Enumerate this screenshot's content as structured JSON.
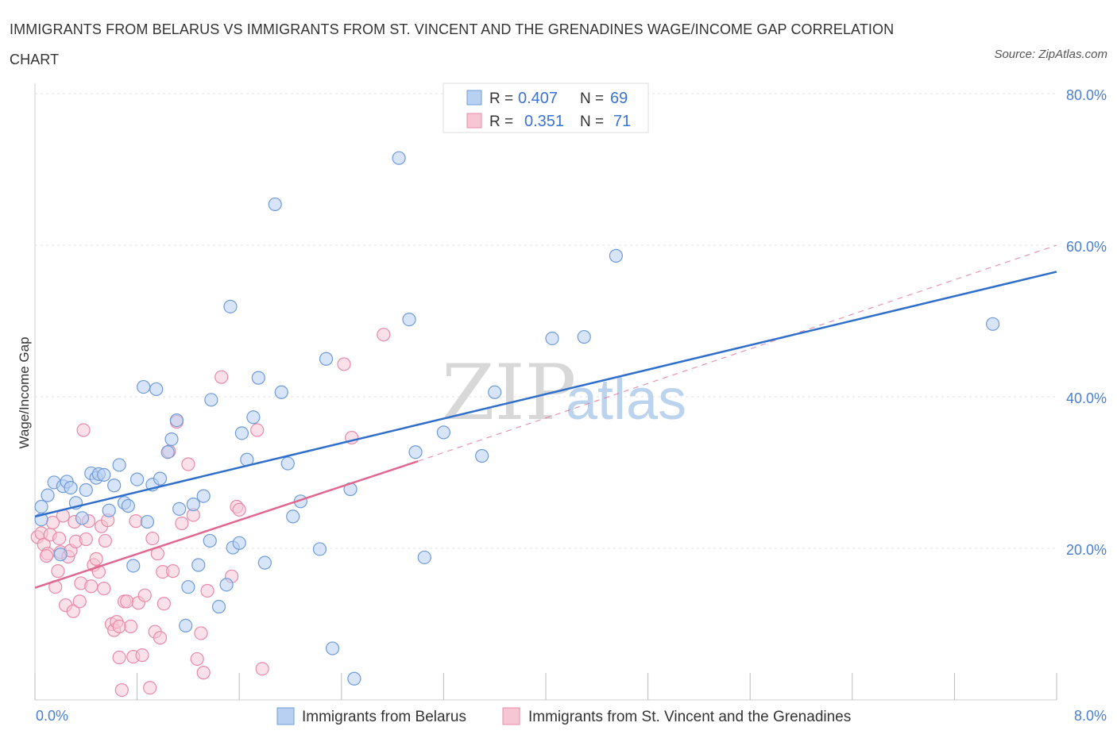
{
  "title": "IMMIGRANTS FROM BELARUS VS IMMIGRANTS FROM ST. VINCENT AND THE GRENADINES WAGE/INCOME GAP CORRELATION CHART",
  "source": "Source: ZipAtlas.com",
  "watermark": {
    "part1": "ZIP",
    "part2": "atlas"
  },
  "legend": {
    "series1": {
      "r_label": "R =",
      "r_value": "0.407",
      "n_label": "N =",
      "n_value": "69"
    },
    "series2": {
      "r_label": "R =",
      "r_value": "0.351",
      "n_label": "N =",
      "n_value": "71"
    }
  },
  "colors": {
    "belarus_fill": "#b8d0f2",
    "belarus_stroke": "#6f9bd9",
    "belarus_line": "#2f6fcb",
    "svg_fill": "#f6c6d5",
    "svg_stroke": "#e98aa8",
    "svg_line": "#e06890",
    "axis_text": "#4a7fcf",
    "grid": "#e3e3e3"
  },
  "chart_data": {
    "type": "scatter",
    "title": "IMMIGRANTS FROM BELARUS VS IMMIGRANTS FROM ST. VINCENT AND THE GRENADINES WAGE/INCOME GAP CORRELATION CHART",
    "xlabel": "",
    "ylabel": "Wage/Income Gap",
    "xlim": [
      0,
      8
    ],
    "ylim": [
      0,
      80
    ],
    "x_tick_labels": [
      {
        "value": 0,
        "label": "0.0%"
      },
      {
        "value": 8,
        "label": "8.0%"
      }
    ],
    "y_tick_labels": [
      {
        "value": 20,
        "label": "20.0%"
      },
      {
        "value": 40,
        "label": "40.0%"
      },
      {
        "value": 60,
        "label": "60.0%"
      },
      {
        "value": 80,
        "label": "80.0%"
      }
    ],
    "grid": true,
    "legend_position": "top-center",
    "series": [
      {
        "name": "Immigrants from Belarus",
        "r": 0.407,
        "n": 69,
        "trend": {
          "x": [
            0,
            8
          ],
          "y": [
            24.2,
            56.5
          ],
          "style": "solid"
        },
        "points": [
          [
            0.05,
            25.5
          ],
          [
            0.1,
            27
          ],
          [
            0.15,
            28.7
          ],
          [
            0.2,
            19.2
          ],
          [
            0.22,
            28.2
          ],
          [
            0.25,
            28.8
          ],
          [
            0.28,
            28
          ],
          [
            0.32,
            26
          ],
          [
            0.37,
            24
          ],
          [
            0.4,
            27.7
          ],
          [
            0.44,
            29.9
          ],
          [
            0.48,
            29.3
          ],
          [
            0.5,
            29.8
          ],
          [
            0.54,
            29.7
          ],
          [
            0.58,
            25
          ],
          [
            0.62,
            28.3
          ],
          [
            0.66,
            31
          ],
          [
            0.7,
            26
          ],
          [
            0.73,
            25.6
          ],
          [
            0.77,
            17.7
          ],
          [
            0.8,
            29.1
          ],
          [
            0.85,
            41.3
          ],
          [
            0.88,
            23.5
          ],
          [
            0.92,
            28.4
          ],
          [
            0.95,
            41
          ],
          [
            0.98,
            29.2
          ],
          [
            1.04,
            32.7
          ],
          [
            1.07,
            34.4
          ],
          [
            1.11,
            36.9
          ],
          [
            1.13,
            25.2
          ],
          [
            1.18,
            9.8
          ],
          [
            1.2,
            14.9
          ],
          [
            1.24,
            25.8
          ],
          [
            1.28,
            17.8
          ],
          [
            1.32,
            26.9
          ],
          [
            1.37,
            21
          ],
          [
            1.38,
            39.6
          ],
          [
            1.44,
            12.3
          ],
          [
            1.5,
            15.2
          ],
          [
            1.53,
            51.9
          ],
          [
            1.55,
            20.1
          ],
          [
            1.6,
            20.7
          ],
          [
            1.62,
            35.2
          ],
          [
            1.66,
            31.7
          ],
          [
            1.71,
            37.3
          ],
          [
            1.75,
            42.5
          ],
          [
            1.8,
            18.1
          ],
          [
            1.88,
            65.4
          ],
          [
            1.93,
            40.6
          ],
          [
            1.98,
            31.2
          ],
          [
            2.02,
            24.2
          ],
          [
            2.08,
            26.2
          ],
          [
            2.23,
            19.9
          ],
          [
            2.28,
            45
          ],
          [
            2.33,
            6.8
          ],
          [
            2.47,
            27.8
          ],
          [
            2.5,
            2.8
          ],
          [
            2.85,
            71.5
          ],
          [
            2.93,
            50.2
          ],
          [
            2.98,
            32.7
          ],
          [
            3.05,
            18.8
          ],
          [
            3.2,
            35.3
          ],
          [
            3.5,
            32.2
          ],
          [
            3.6,
            40.6
          ],
          [
            4.05,
            47.7
          ],
          [
            4.3,
            47.9
          ],
          [
            4.55,
            58.6
          ],
          [
            7.5,
            49.6
          ],
          [
            0.05,
            23.8
          ]
        ]
      },
      {
        "name": "Immigrants from St. Vincent and the Grenadines",
        "r": 0.351,
        "n": 71,
        "trend": {
          "x": [
            0,
            3.0
          ],
          "y": [
            14.8,
            31.5
          ],
          "style": "solid",
          "extension": {
            "x": [
              3.0,
              8.0
            ],
            "y": [
              31.5,
              60.0
            ],
            "style": "dashed"
          }
        },
        "points": [
          [
            0.02,
            21.5
          ],
          [
            0.05,
            22
          ],
          [
            0.07,
            20.5
          ],
          [
            0.1,
            19.3
          ],
          [
            0.12,
            21.8
          ],
          [
            0.14,
            23.4
          ],
          [
            0.16,
            14.9
          ],
          [
            0.18,
            17
          ],
          [
            0.2,
            19.5
          ],
          [
            0.22,
            24.3
          ],
          [
            0.24,
            12.5
          ],
          [
            0.26,
            18.9
          ],
          [
            0.28,
            19.7
          ],
          [
            0.3,
            11.7
          ],
          [
            0.32,
            20.9
          ],
          [
            0.35,
            13
          ],
          [
            0.36,
            15.4
          ],
          [
            0.38,
            35.6
          ],
          [
            0.4,
            21.2
          ],
          [
            0.42,
            23.6
          ],
          [
            0.44,
            15
          ],
          [
            0.46,
            17.8
          ],
          [
            0.48,
            18.6
          ],
          [
            0.5,
            16.9
          ],
          [
            0.52,
            22.9
          ],
          [
            0.54,
            14.7
          ],
          [
            0.57,
            23.7
          ],
          [
            0.6,
            10
          ],
          [
            0.62,
            9.2
          ],
          [
            0.64,
            10.3
          ],
          [
            0.66,
            5.6
          ],
          [
            0.68,
            1.3
          ],
          [
            0.7,
            13
          ],
          [
            0.72,
            13
          ],
          [
            0.75,
            9.7
          ],
          [
            0.77,
            5.7
          ],
          [
            0.79,
            23.6
          ],
          [
            0.81,
            12.8
          ],
          [
            0.84,
            5.9
          ],
          [
            0.86,
            13.8
          ],
          [
            0.9,
            1.6
          ],
          [
            0.92,
            21.3
          ],
          [
            0.94,
            9
          ],
          [
            0.96,
            19.3
          ],
          [
            0.98,
            8.2
          ],
          [
            1.0,
            16.9
          ],
          [
            1.01,
            12.7
          ],
          [
            1.05,
            32.8
          ],
          [
            1.08,
            17
          ],
          [
            1.11,
            36.7
          ],
          [
            1.15,
            23.3
          ],
          [
            1.2,
            31.1
          ],
          [
            1.24,
            24.4
          ],
          [
            1.27,
            5.4
          ],
          [
            1.3,
            8.8
          ],
          [
            1.32,
            3.6
          ],
          [
            1.35,
            14.4
          ],
          [
            1.46,
            42.6
          ],
          [
            1.54,
            16.3
          ],
          [
            1.58,
            25.5
          ],
          [
            1.6,
            25.1
          ],
          [
            1.74,
            35.6
          ],
          [
            1.78,
            4.1
          ],
          [
            2.42,
            44.3
          ],
          [
            2.48,
            34.6
          ],
          [
            2.73,
            48.2
          ],
          [
            0.09,
            19
          ],
          [
            0.19,
            21.3
          ],
          [
            0.31,
            23.5
          ],
          [
            0.55,
            21
          ],
          [
            0.66,
            9.7
          ]
        ]
      }
    ]
  },
  "bottom_legend": {
    "item1": "Immigrants from Belarus",
    "item2": "Immigrants from St. Vincent and the Grenadines"
  }
}
